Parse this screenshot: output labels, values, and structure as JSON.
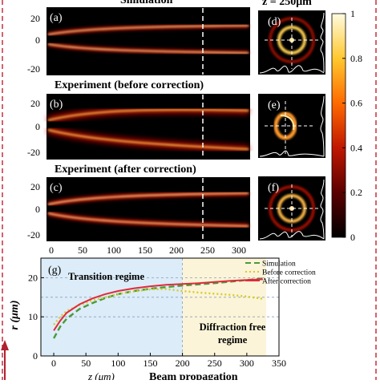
{
  "headers": {
    "top_partial": "Simulation",
    "z_label": "z = 250μm",
    "panel_b_title": "Experiment (before correction)",
    "panel_c_title": "Experiment (after correction)"
  },
  "panel_letters": {
    "a": "(a)",
    "b": "(b)",
    "c": "(c)",
    "d": "(d)",
    "e": "(e)",
    "f": "(f)",
    "g": "(g)"
  },
  "intensity_y_ticks": [
    "20",
    "0",
    "-20"
  ],
  "top_x_ticks": [
    "0",
    "50",
    "100",
    "150",
    "200",
    "250",
    "300"
  ],
  "colorbar": {
    "ticks": [
      "1",
      "0.8",
      "0.6",
      "0.4",
      "0.2",
      "0"
    ],
    "colormap": [
      "#000000",
      "#5a0000",
      "#c01800",
      "#ff6a00",
      "#ffc830",
      "#fffbe0"
    ]
  },
  "chart_data": {
    "type": "line",
    "xlabel": "z (μm)",
    "ylabel": "r (μm)",
    "xlim": [
      -20,
      350
    ],
    "ylim": [
      0,
      25
    ],
    "x_ticks": [
      "0",
      "50",
      "100",
      "150",
      "200",
      "250",
      "300",
      "350"
    ],
    "y_ticks": [
      "20",
      "10",
      "0"
    ],
    "regions": [
      {
        "label": "Transition regime",
        "x": [
          -20,
          200
        ],
        "color": "#dcecf8"
      },
      {
        "label_lines": [
          "Diffraction free",
          "regime"
        ],
        "x": [
          200,
          330
        ],
        "color": "#fbf4d8"
      }
    ],
    "series": [
      {
        "name": "Simulation",
        "style": "dashed",
        "color": "#4a9a3a",
        "x": [
          0,
          10,
          20,
          40,
          60,
          80,
          100,
          125,
          150,
          175,
          200,
          225,
          250,
          275,
          300,
          325
        ],
        "y": [
          4.5,
          7.5,
          9.5,
          12,
          13.5,
          14.8,
          15.8,
          16.6,
          17.2,
          17.6,
          18,
          18.3,
          18.6,
          19,
          19.4,
          19.8
        ]
      },
      {
        "name": "Before correction",
        "style": "dotted",
        "color": "#d6cc2a",
        "x": [
          0,
          10,
          20,
          40,
          60,
          80,
          100,
          125,
          150,
          175,
          200,
          225,
          250,
          275,
          300,
          325
        ],
        "y": [
          8,
          10,
          11.5,
          13,
          14.2,
          15,
          15.8,
          16.5,
          17,
          17.1,
          16.6,
          16.2,
          15.9,
          15.6,
          15.2,
          14.6
        ]
      },
      {
        "name": "After correction",
        "style": "solid",
        "color": "#e02a3c",
        "x": [
          0,
          10,
          20,
          40,
          60,
          80,
          100,
          125,
          150,
          175,
          200,
          225,
          250,
          275,
          300,
          325
        ],
        "y": [
          6.5,
          9,
          11,
          13.2,
          14.7,
          15.8,
          16.6,
          17.3,
          17.8,
          18.2,
          18.4,
          18.6,
          18.9,
          19.2,
          19.4,
          19.6
        ]
      }
    ]
  },
  "footer": {
    "axis_label": "z (μm)",
    "caption": "Beam propagation"
  }
}
